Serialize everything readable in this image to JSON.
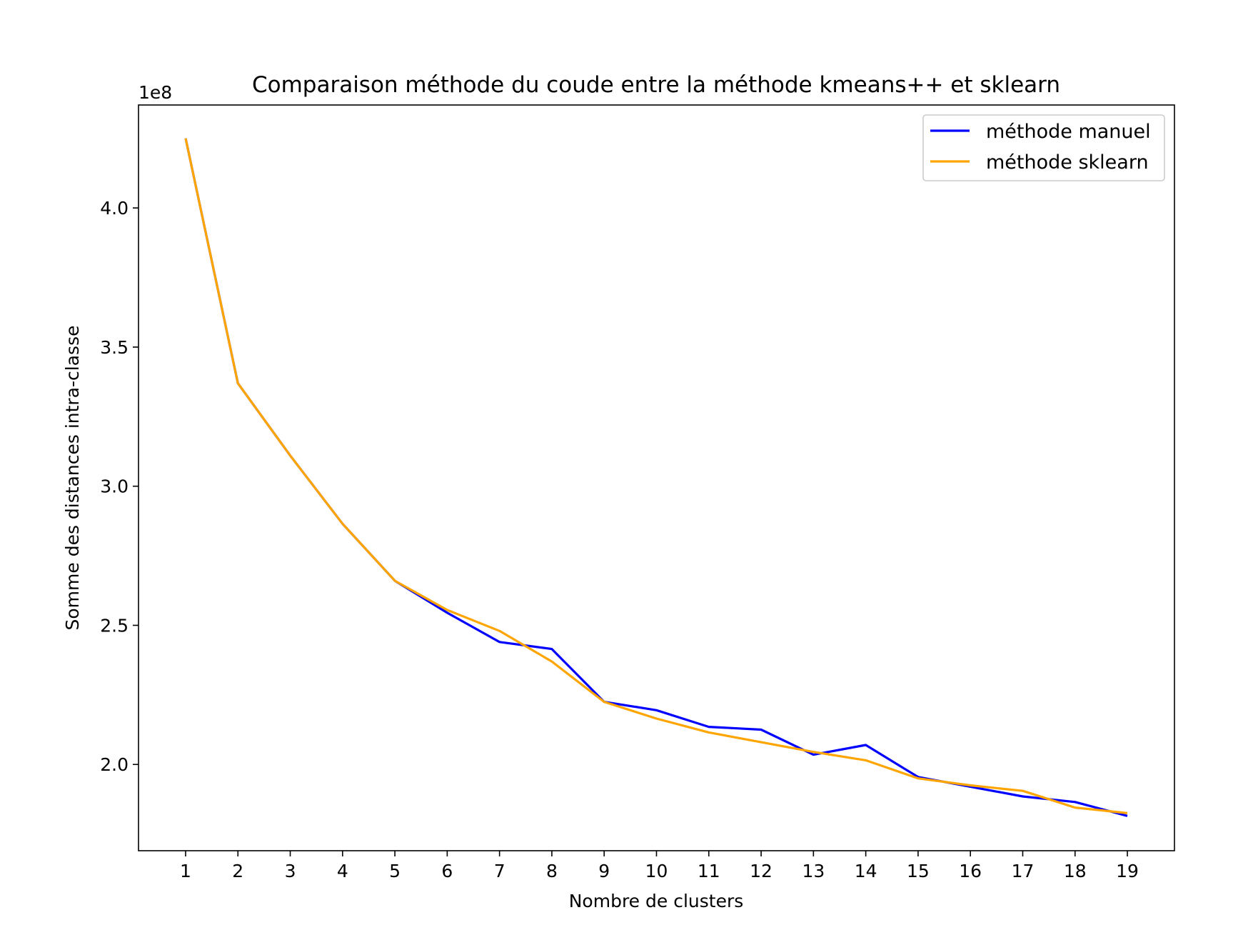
{
  "chart_data": {
    "type": "line",
    "title": "Comparaison méthode du coude entre la méthode kmeans++ et sklearn",
    "xlabel": "Nombre de clusters",
    "ylabel": "Somme des distances intra-classe",
    "y_offset_label": "1e8",
    "x": [
      1,
      2,
      3,
      4,
      5,
      6,
      7,
      8,
      9,
      10,
      11,
      12,
      13,
      14,
      15,
      16,
      17,
      18,
      19
    ],
    "xlim": [
      0.1,
      19.9
    ],
    "ylim": [
      1.69,
      4.37
    ],
    "y_ticks": [
      2.0,
      2.5,
      3.0,
      3.5,
      4.0
    ],
    "y_tick_labels": [
      "2.0",
      "2.5",
      "3.0",
      "3.5",
      "4.0"
    ],
    "grid": false,
    "legend_position": "top-right",
    "series": [
      {
        "name": "méthode manuel",
        "color": "#0000ff",
        "values": [
          4.25,
          3.37,
          3.11,
          2.865,
          2.66,
          2.545,
          2.44,
          2.415,
          2.225,
          2.195,
          2.135,
          2.125,
          2.035,
          2.07,
          1.955,
          1.92,
          1.885,
          1.865,
          1.815
        ]
      },
      {
        "name": "méthode sklearn",
        "color": "#ffa500",
        "values": [
          4.25,
          3.37,
          3.11,
          2.865,
          2.66,
          2.555,
          2.48,
          2.37,
          2.225,
          2.165,
          2.115,
          2.08,
          2.045,
          2.015,
          1.95,
          1.925,
          1.905,
          1.845,
          1.825
        ]
      }
    ]
  }
}
